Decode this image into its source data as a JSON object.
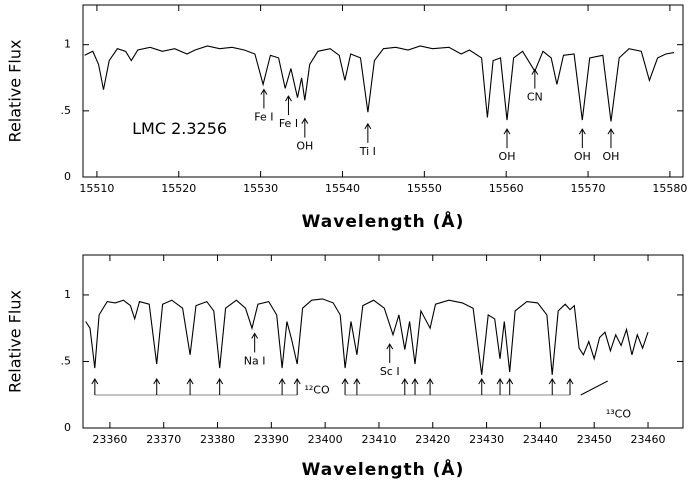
{
  "chart_data": [
    {
      "type": "line",
      "color": "#000000",
      "xlabel": "Wavelength (Å)",
      "ylabel": "Relative Flux",
      "xlim": [
        15508.3,
        15581.6
      ],
      "ylim": [
        0,
        1.3
      ],
      "xticks": [
        15510,
        15520,
        15530,
        15540,
        15550,
        15560,
        15570,
        15580
      ],
      "yticks": [
        0,
        {
          "value": 0.5,
          "label": ".5"
        },
        1
      ],
      "x": [
        15508.5,
        15509.5,
        15510.2,
        15510.8,
        15511.5,
        15512.5,
        15513.5,
        15514.2,
        15515,
        15516.5,
        15518,
        15519.5,
        15521,
        15522,
        15523.5,
        15525,
        15526.5,
        15528,
        15529.3,
        15530.3,
        15531.2,
        15532.2,
        15533.0,
        15533.7,
        15534.5,
        15535.0,
        15535.4,
        15536,
        15537,
        15538.5,
        15539.6,
        15540.3,
        15541,
        15542.2,
        15543.1,
        15543.9,
        15545,
        15546.5,
        15548,
        15549.5,
        15551,
        15553,
        15554.5,
        15555.5,
        15557,
        15557.7,
        15558.4,
        15559.3,
        15560.1,
        15560.9,
        15562,
        15563.5,
        15564.5,
        15565.5,
        15566.2,
        15567,
        15568.3,
        15569.3,
        15570.2,
        15571.8,
        15572.8,
        15573.8,
        15575,
        15576.5,
        15577.5,
        15578.5,
        15579.5,
        15580.5
      ],
      "values": [
        0.92,
        0.95,
        0.85,
        0.66,
        0.88,
        0.97,
        0.95,
        0.88,
        0.96,
        0.98,
        0.95,
        0.97,
        0.93,
        0.96,
        0.99,
        0.97,
        0.98,
        0.96,
        0.93,
        0.7,
        0.92,
        0.9,
        0.67,
        0.82,
        0.6,
        0.75,
        0.58,
        0.85,
        0.95,
        0.97,
        0.92,
        0.73,
        0.93,
        0.9,
        0.49,
        0.88,
        0.97,
        0.98,
        0.96,
        0.99,
        0.97,
        0.98,
        0.93,
        0.96,
        0.9,
        0.45,
        0.88,
        0.9,
        0.43,
        0.9,
        0.95,
        0.8,
        0.95,
        0.9,
        0.7,
        0.92,
        0.93,
        0.43,
        0.9,
        0.92,
        0.42,
        0.9,
        0.97,
        0.95,
        0.73,
        0.9,
        0.93,
        0.94
      ],
      "label": {
        "text": "LMC 2.3256",
        "x": 15520.1,
        "y": 0.36
      },
      "annotations": [
        {
          "text": "Fe I",
          "x": 15530.4,
          "y": 0.45,
          "arrow": true
        },
        {
          "text": "Fe I",
          "x": 15533.4,
          "y": 0.4,
          "arrow": true
        },
        {
          "text": "OH",
          "x": 15535.4,
          "y": 0.23,
          "arrow": true
        },
        {
          "text": "Ti I",
          "x": 15543.1,
          "y": 0.19,
          "arrow": true
        },
        {
          "text": "OH",
          "x": 15560.1,
          "y": 0.15,
          "arrow": true
        },
        {
          "text": "CN",
          "x": 15563.5,
          "y": 0.6,
          "arrow": true
        },
        {
          "text": "OH",
          "x": 15569.3,
          "y": 0.15,
          "arrow": true
        },
        {
          "text": "OH",
          "x": 15572.8,
          "y": 0.15,
          "arrow": true
        }
      ]
    },
    {
      "type": "line",
      "color": "#000000",
      "xlabel": "Wavelength (Å)",
      "ylabel": "Relative Flux",
      "xlim": [
        23355,
        23466.5
      ],
      "ylim": [
        0,
        1.3
      ],
      "xticks": [
        23360,
        23370,
        23380,
        23390,
        23400,
        23410,
        23420,
        23430,
        23440,
        23450,
        23460
      ],
      "yticks": [
        0,
        {
          "value": 0.5,
          "label": ".5"
        },
        1
      ],
      "x": [
        23355.5,
        23356.3,
        23357.2,
        23358,
        23359.5,
        23361,
        23362.5,
        23363.8,
        23364.6,
        23365.5,
        23367.3,
        23368.7,
        23369.8,
        23371.5,
        23373.5,
        23374.9,
        23376,
        23378,
        23379.3,
        23380.4,
        23381.5,
        23383.5,
        23385.2,
        23386.4,
        23387.5,
        23389.5,
        23391,
        23392,
        23392.9,
        23393.8,
        23394.8,
        23395.8,
        23397.5,
        23399.5,
        23401.5,
        23402.8,
        23403.7,
        23404.8,
        23405.9,
        23407,
        23409,
        23411,
        23412.6,
        23413.7,
        23414.8,
        23415.7,
        23416.7,
        23417.8,
        23419.5,
        23420.5,
        23423,
        23425.5,
        23427.5,
        23429.1,
        23430.3,
        23431.5,
        23432.5,
        23433.3,
        23434.3,
        23435.3,
        23437.5,
        23439.5,
        23441.2,
        23442.2,
        23443.3,
        23444.6,
        23445.5,
        23446.3,
        23447.2,
        23448,
        23449,
        23450,
        23451,
        23452,
        23453,
        23454,
        23455,
        23456,
        23457,
        23458,
        23459,
        23460
      ],
      "values": [
        0.8,
        0.75,
        0.45,
        0.85,
        0.95,
        0.94,
        0.96,
        0.92,
        0.82,
        0.95,
        0.93,
        0.48,
        0.93,
        0.96,
        0.9,
        0.55,
        0.92,
        0.95,
        0.88,
        0.45,
        0.9,
        0.96,
        0.9,
        0.75,
        0.93,
        0.95,
        0.85,
        0.45,
        0.8,
        0.66,
        0.48,
        0.9,
        0.96,
        0.97,
        0.94,
        0.85,
        0.45,
        0.8,
        0.55,
        0.92,
        0.96,
        0.9,
        0.7,
        0.85,
        0.59,
        0.8,
        0.48,
        0.88,
        0.75,
        0.93,
        0.96,
        0.94,
        0.9,
        0.4,
        0.85,
        0.82,
        0.52,
        0.8,
        0.42,
        0.88,
        0.95,
        0.94,
        0.85,
        0.4,
        0.88,
        0.93,
        0.89,
        0.92,
        0.6,
        0.55,
        0.65,
        0.52,
        0.68,
        0.72,
        0.58,
        0.7,
        0.62,
        0.74,
        0.55,
        0.7,
        0.6,
        0.72
      ],
      "annotations": [
        {
          "text": "Na I",
          "x": 23386.9,
          "y": 0.5,
          "arrow": true
        },
        {
          "text": "Sc I",
          "x": 23412.0,
          "y": 0.42,
          "arrow": true
        },
        {
          "text": "¹²CO",
          "x": 23398.5,
          "y": 0.28,
          "arrow": false
        },
        {
          "text": "¹³CO",
          "x": 23454.5,
          "y": 0.1,
          "arrow": false
        }
      ],
      "markers": [
        [
          23357.2,
          23368.7,
          23374.9,
          23380.4,
          23392.0,
          23394.8
        ],
        [
          23403.7,
          23405.9,
          23414.8,
          23416.7,
          23419.5,
          23429.1,
          23432.5,
          23434.3,
          23442.2,
          23445.5
        ]
      ],
      "diagonal": [
        23447.5,
        23452.5
      ]
    }
  ]
}
